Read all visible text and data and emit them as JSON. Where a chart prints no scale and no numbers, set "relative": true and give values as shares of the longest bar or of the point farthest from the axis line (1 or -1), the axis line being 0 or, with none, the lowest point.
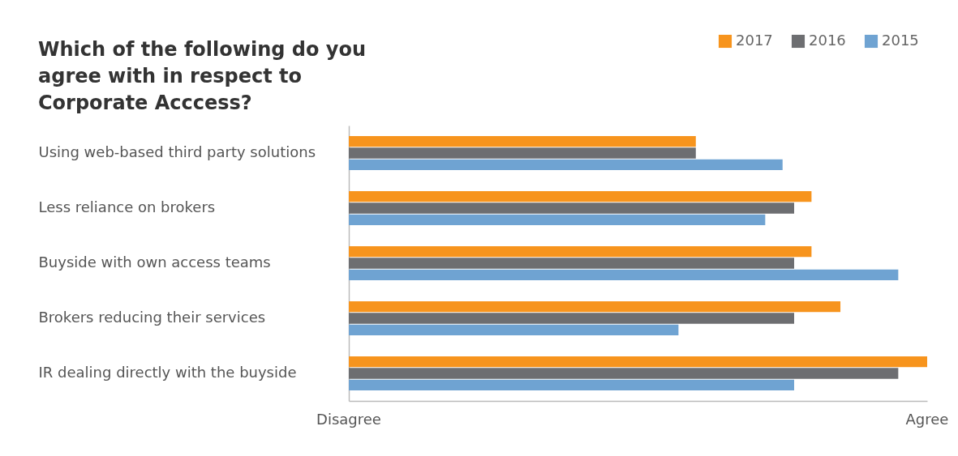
{
  "chart_data": {
    "type": "bar",
    "orientation": "horizontal",
    "relative": true,
    "title": "Which of the following do you agree with in respect to Corporate Acccess?",
    "categories": [
      "Using web-based third party solutions",
      "Less reliance on brokers",
      "Buyside with own access teams",
      "Brokers reducing their services",
      "IR dealing directly with the buyside"
    ],
    "series": [
      {
        "name": "2017",
        "color": "#f7941d",
        "values": [
          0.6,
          0.8,
          0.8,
          0.85,
          1
        ]
      },
      {
        "name": "2016",
        "color": "#6d6e71",
        "values": [
          0.6,
          0.77,
          0.77,
          0.77,
          0.95
        ]
      },
      {
        "name": "2015",
        "color": "#6fa3d2",
        "values": [
          0.75,
          0.72,
          0.95,
          0.57,
          0.77
        ]
      }
    ],
    "annotations": [
      "Disagree",
      "Agree"
    ],
    "legend": "top right",
    "grid": false
  }
}
